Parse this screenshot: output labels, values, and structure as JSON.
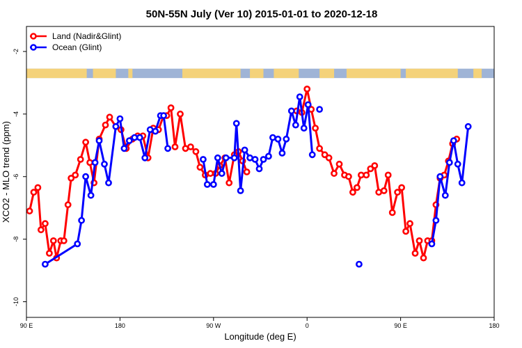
{
  "chart_data": {
    "type": "line",
    "title": "50N-55N July (Ver 10)   2015-01-01 to 2020-12-18",
    "xlabel": "Longitude (deg E)",
    "ylabel": "XCO2 - MLO trend (ppm)",
    "xlim": [
      90,
      540
    ],
    "ylim": [
      -10.5,
      -1.2
    ],
    "x_ticks": [
      {
        "value": 90,
        "label": "90 E"
      },
      {
        "value": 180,
        "label": "180"
      },
      {
        "value": 270,
        "label": "90 W"
      },
      {
        "value": 360,
        "label": "0"
      },
      {
        "value": 450,
        "label": "90 E"
      },
      {
        "value": 540,
        "label": "180"
      }
    ],
    "y_ticks": [
      {
        "value": -2,
        "label": "-2"
      },
      {
        "value": -4,
        "label": "-4"
      },
      {
        "value": -6,
        "label": "-6"
      },
      {
        "value": -8,
        "label": "-8"
      },
      {
        "value": -10,
        "label": "-10"
      }
    ],
    "legend_position": "top-left",
    "land_mask_band": {
      "y_top": -2.55,
      "y_bottom": -2.85,
      "land_color": "#f4d27a",
      "ocean_color": "#9fb4d6"
    },
    "series": [
      {
        "name": "Land (Nadir&Glint)",
        "color": "#ff0000",
        "segments": [
          [
            [
              93,
              -7.1
            ],
            [
              97,
              -6.5
            ],
            [
              101,
              -6.35
            ],
            [
              104,
              -7.7
            ],
            [
              108,
              -7.5
            ],
            [
              112,
              -8.45
            ],
            [
              116,
              -8.05
            ],
            [
              119,
              -8.6
            ],
            [
              123,
              -8.05
            ],
            [
              126,
              -8.05
            ],
            [
              130,
              -6.9
            ],
            [
              133,
              -6.05
            ],
            [
              137,
              -5.95
            ],
            [
              142,
              -5.45
            ],
            [
              147,
              -4.9
            ],
            [
              151,
              -5.55
            ],
            [
              155,
              -6.2
            ],
            [
              160,
              -4.8
            ],
            [
              166,
              -4.35
            ],
            [
              170,
              -4.1
            ],
            [
              176,
              -4.4
            ],
            [
              181,
              -4.5
            ],
            [
              186,
              -5.1
            ],
            [
              192,
              -4.8
            ],
            [
              197,
              -4.7
            ],
            [
              202,
              -4.7
            ],
            [
              207,
              -5.4
            ],
            [
              212,
              -4.45
            ],
            [
              217,
              -4.5
            ],
            [
              222,
              -4.05
            ],
            [
              225,
              -4.05
            ],
            [
              229,
              -3.8
            ],
            [
              233,
              -5.05
            ],
            [
              238,
              -4.0
            ],
            [
              243,
              -5.1
            ],
            [
              248,
              -5.05
            ],
            [
              253,
              -5.2
            ],
            [
              257,
              -5.7
            ],
            [
              262,
              -5.95
            ],
            [
              267,
              -5.9
            ],
            [
              272,
              -5.9
            ],
            [
              276,
              -5.65
            ],
            [
              281,
              -5.4
            ],
            [
              285,
              -6.2
            ],
            [
              290,
              -5.3
            ],
            [
              294,
              -5.2
            ],
            [
              298,
              -5.5
            ],
            [
              302,
              -5.85
            ]
          ],
          [
            [
              350,
              -3.9
            ],
            [
              355,
              -3.95
            ],
            [
              360,
              -3.2
            ],
            [
              364,
              -3.85
            ],
            [
              368,
              -4.45
            ],
            [
              372,
              -5.1
            ],
            [
              377,
              -5.3
            ],
            [
              381,
              -5.4
            ],
            [
              386,
              -5.9
            ],
            [
              391,
              -5.6
            ],
            [
              396,
              -5.95
            ],
            [
              400,
              -6.0
            ],
            [
              404,
              -6.5
            ],
            [
              408,
              -6.35
            ],
            [
              412,
              -5.95
            ],
            [
              417,
              -5.95
            ],
            [
              421,
              -5.75
            ],
            [
              425,
              -5.65
            ],
            [
              429,
              -6.5
            ],
            [
              434,
              -6.45
            ],
            [
              438,
              -5.95
            ],
            [
              442,
              -7.15
            ],
            [
              447,
              -6.5
            ],
            [
              451,
              -6.35
            ],
            [
              455,
              -7.75
            ],
            [
              459,
              -7.5
            ],
            [
              464,
              -8.45
            ],
            [
              468,
              -8.05
            ],
            [
              472,
              -8.6
            ],
            [
              476,
              -8.05
            ],
            [
              480,
              -8.05
            ],
            [
              484,
              -6.9
            ],
            [
              488,
              -6.05
            ],
            [
              492,
              -5.95
            ],
            [
              496,
              -5.5
            ],
            [
              500,
              -4.95
            ],
            [
              504,
              -4.8
            ]
          ]
        ]
      },
      {
        "name": "Ocean (Glint)",
        "color": "#0000ff",
        "segments": [
          [
            [
              108,
              -8.8
            ],
            [
              139,
              -8.15
            ],
            [
              143,
              -7.4
            ],
            [
              147,
              -6.0
            ],
            [
              152,
              -6.6
            ],
            [
              156,
              -5.55
            ],
            [
              160,
              -4.85
            ],
            [
              165,
              -5.6
            ],
            [
              169,
              -6.2
            ],
            [
              176,
              -4.4
            ],
            [
              180,
              -4.15
            ],
            [
              184,
              -5.1
            ],
            [
              189,
              -4.85
            ],
            [
              194,
              -4.75
            ],
            [
              199,
              -4.75
            ],
            [
              204,
              -5.4
            ],
            [
              209,
              -4.5
            ],
            [
              214,
              -4.55
            ],
            [
              219,
              -4.05
            ],
            [
              222,
              -4.05
            ],
            [
              226,
              -5.1
            ]
          ],
          [
            [
              260,
              -5.45
            ],
            [
              264,
              -6.25
            ],
            [
              270,
              -6.25
            ],
            [
              274,
              -5.4
            ],
            [
              278,
              -5.9
            ],
            [
              282,
              -5.4
            ],
            [
              290,
              -5.4
            ],
            [
              292,
              -4.3
            ],
            [
              296,
              -6.45
            ],
            [
              300,
              -5.15
            ],
            [
              305,
              -5.4
            ],
            [
              310,
              -5.45
            ],
            [
              314,
              -5.75
            ],
            [
              318,
              -5.45
            ],
            [
              323,
              -5.35
            ],
            [
              327,
              -4.75
            ],
            [
              332,
              -4.8
            ],
            [
              336,
              -5.25
            ],
            [
              340,
              -4.8
            ],
            [
              345,
              -3.9
            ],
            [
              349,
              -4.35
            ],
            [
              353,
              -3.45
            ],
            [
              357,
              -4.45
            ],
            [
              361,
              -3.7
            ],
            [
              365,
              -5.3
            ]
          ],
          [
            [
              372,
              -3.85
            ]
          ],
          [
            [
              410,
              -8.8
            ]
          ],
          [
            [
              480,
              -8.15
            ],
            [
              484,
              -7.4
            ],
            [
              488,
              -6.0
            ],
            [
              493,
              -6.6
            ],
            [
              497,
              -5.55
            ],
            [
              501,
              -4.85
            ],
            [
              505,
              -5.6
            ],
            [
              509,
              -6.2
            ],
            [
              515,
              -4.4
            ]
          ]
        ]
      }
    ]
  }
}
